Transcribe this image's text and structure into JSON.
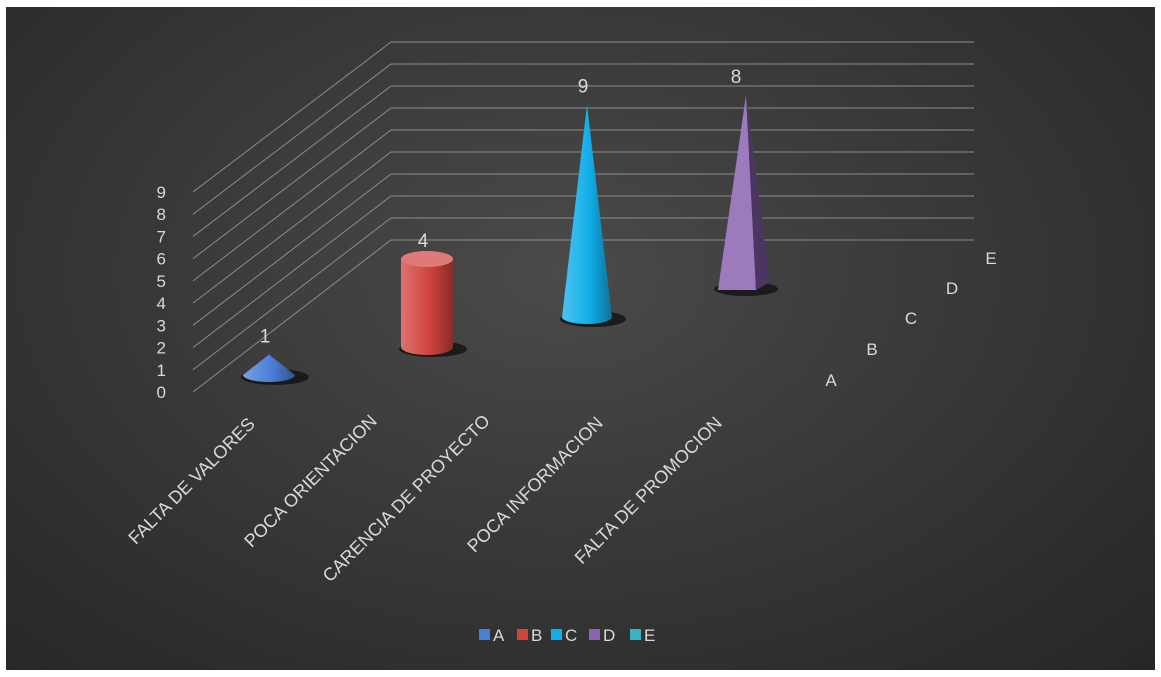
{
  "chart_data": {
    "type": "bar",
    "title": "",
    "xlabel": "",
    "ylabel": "",
    "ylim": [
      0,
      9
    ],
    "yticks": [
      0,
      1,
      2,
      3,
      4,
      5,
      6,
      7,
      8,
      9
    ],
    "grid": true,
    "view": "3d",
    "legend_position": "bottom",
    "categories": [
      "FALTA DE VALORES",
      "POCA ORIENTACION",
      "CARENCIA DE PROYECTO",
      "POCA INFORMACION",
      "FALTA DE PROMOCION"
    ],
    "depth_labels": [
      "A",
      "B",
      "C",
      "D",
      "E"
    ],
    "series": [
      {
        "name": "A",
        "color": "#4a7fd6",
        "shape": "cone",
        "values": [
          1,
          null,
          null,
          null,
          null
        ]
      },
      {
        "name": "B",
        "color": "#d0433f",
        "shape": "cylinder",
        "values": [
          null,
          4,
          null,
          null,
          null
        ]
      },
      {
        "name": "C",
        "color": "#12aee8",
        "shape": "cone",
        "values": [
          null,
          null,
          9,
          null,
          null
        ]
      },
      {
        "name": "D",
        "color": "#8b63b0",
        "shape": "pyramid",
        "values": [
          null,
          null,
          null,
          8,
          null
        ]
      },
      {
        "name": "E",
        "color": "#3bb2c8",
        "shape": "bar",
        "values": [
          null,
          null,
          null,
          null,
          null
        ]
      }
    ]
  }
}
